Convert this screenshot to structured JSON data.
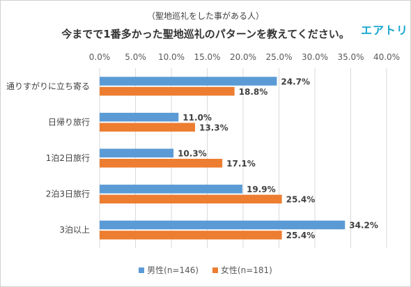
{
  "header": {
    "subtitle": "（聖地巡礼をした事がある人）",
    "title": "今までで1番多かった聖地巡礼のパターンを教えてください。",
    "brand": "エアトリ"
  },
  "chart_data": {
    "type": "bar",
    "orientation": "horizontal",
    "categories": [
      "通りすがりに立ち寄る",
      "日帰り旅行",
      "1泊2日旅行",
      "2泊3日旅行",
      "3泊以上"
    ],
    "series": [
      {
        "name": "男性(n=146)",
        "color": "#5b9bd5",
        "values": [
          24.7,
          11.0,
          10.3,
          19.9,
          34.2
        ]
      },
      {
        "name": "女性(n=181)",
        "color": "#ed7d31",
        "values": [
          18.8,
          13.3,
          17.1,
          25.4,
          25.4
        ]
      }
    ],
    "xlim": [
      0,
      40
    ],
    "xticks": [
      0,
      5,
      10,
      15,
      20,
      25,
      30,
      35,
      40
    ],
    "tick_suffix": "%",
    "value_suffix": "%",
    "grid": true,
    "legend": "bottom"
  }
}
